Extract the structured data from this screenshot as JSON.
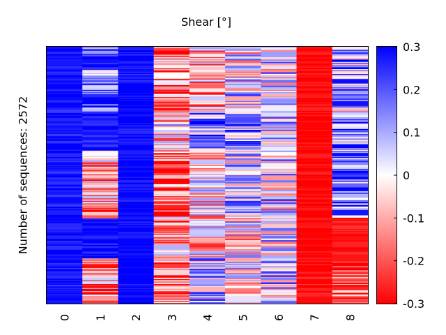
{
  "chart_data": {
    "type": "heatmap",
    "title": "Shear [°]",
    "xlabel": "",
    "ylabel": "Number of sequences: 2572",
    "categories": [
      "0",
      "1",
      "2",
      "3",
      "4",
      "5",
      "6",
      "7",
      "8"
    ],
    "colorbar": {
      "range": [
        -0.3,
        0.3
      ],
      "ticks": [
        0.3,
        0.2,
        0.1,
        0,
        -0.1,
        -0.2,
        -0.3
      ],
      "tick_labels": [
        "0.3",
        "0.2",
        "0.1",
        "0",
        "-0.1",
        "-0.2",
        "-0.3"
      ],
      "colormap": "bwr_reversed",
      "high_color": "#0000ff",
      "mid_color": "#ffffff",
      "low_color": "#ff0000"
    },
    "row_profiles": [
      {
        "rows_from": 0,
        "rows_to": 360,
        "means": [
          0.28,
          0.18,
          0.29,
          -0.12,
          -0.08,
          0.0,
          0.02,
          -0.3,
          0.12
        ]
      },
      {
        "rows_from": 360,
        "rows_to": 640,
        "means": [
          0.28,
          0.25,
          0.3,
          -0.15,
          -0.12,
          0.04,
          0.0,
          -0.3,
          0.1
        ]
      },
      {
        "rows_from": 640,
        "rows_to": 1040,
        "means": [
          0.28,
          0.27,
          0.29,
          -0.05,
          0.12,
          0.1,
          0.08,
          -0.3,
          0.15
        ]
      },
      {
        "rows_from": 1040,
        "rows_to": 1700,
        "means": [
          0.27,
          -0.1,
          0.3,
          -0.2,
          -0.02,
          0.05,
          0.04,
          -0.3,
          0.18
        ]
      },
      {
        "rows_from": 1700,
        "rows_to": 2120,
        "means": [
          0.29,
          0.28,
          0.3,
          -0.12,
          -0.05,
          -0.02,
          0.05,
          -0.3,
          -0.28
        ]
      },
      {
        "rows_from": 2120,
        "rows_to": 2572,
        "means": [
          0.27,
          -0.1,
          0.3,
          -0.18,
          0.06,
          0.0,
          0.05,
          -0.28,
          -0.25
        ]
      }
    ]
  }
}
